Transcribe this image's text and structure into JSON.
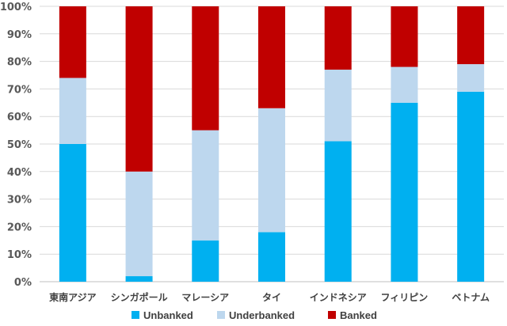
{
  "chart_data": {
    "type": "bar",
    "stacked": true,
    "categories": [
      "東南アジア",
      "シンガポール",
      "マレーシア",
      "タイ",
      "インドネシア",
      "フィリピン",
      "ベトナム"
    ],
    "series": [
      {
        "name": "Unbanked",
        "color": "#00b0f0",
        "values": [
          50,
          2,
          15,
          18,
          51,
          65,
          69
        ]
      },
      {
        "name": "Underbanked",
        "color": "#bdd7ee",
        "values": [
          24,
          38,
          40,
          45,
          26,
          13,
          10
        ]
      },
      {
        "name": "Banked",
        "color": "#c00000",
        "values": [
          26,
          60,
          45,
          37,
          23,
          22,
          21
        ]
      }
    ],
    "ylim": [
      0,
      100
    ],
    "yticks": [
      "0%",
      "10%",
      "20%",
      "30%",
      "40%",
      "50%",
      "60%",
      "70%",
      "80%",
      "90%",
      "100%"
    ],
    "grid": true,
    "legend_position": "bottom"
  }
}
